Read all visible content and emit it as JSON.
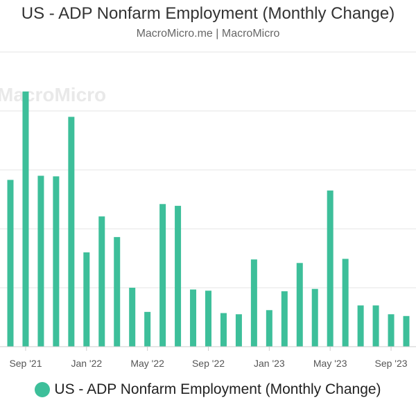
{
  "title": "US - ADP Nonfarm Employment (Monthly Change)",
  "subtitle": "MacroMicro.me | MacroMicro",
  "watermark": "MacroMicro",
  "colors": {
    "bar": "#3dbf9a",
    "grid": "#e6e6e6",
    "axis_text": "#555555"
  },
  "legend": {
    "label": "US - ADP Nonfarm Employment (Monthly Change)"
  },
  "chart_data": {
    "type": "bar",
    "title": "US - ADP Nonfarm Employment (Monthly Change)",
    "xlabel": "",
    "ylabel": "",
    "grid": true,
    "legend_position": "bottom",
    "x_tick_labels": [
      "Sep '21",
      "Jan '22",
      "May '22",
      "Sep '22",
      "Jan '23",
      "May '23",
      "Sep '23"
    ],
    "ylim": [
      0,
      500000
    ],
    "series": [
      {
        "name": "US - ADP Nonfarm Employment (Monthly Change)",
        "categories": [
          "2021-08",
          "2021-09",
          "2021-10",
          "2021-11",
          "2021-12",
          "2022-01",
          "2022-02",
          "2022-03",
          "2022-04",
          "2022-05",
          "2022-06",
          "2022-07",
          "2022-08",
          "2022-09",
          "2022-10",
          "2022-11",
          "2022-12",
          "2023-01",
          "2023-02",
          "2023-03",
          "2023-04",
          "2023-05",
          "2023-06",
          "2023-07",
          "2023-08",
          "2023-09",
          "2023-10"
        ],
        "values": [
          283000,
          433000,
          290000,
          289000,
          390000,
          160000,
          221000,
          186000,
          100000,
          59000,
          242000,
          239000,
          97000,
          95000,
          57000,
          55000,
          148000,
          62000,
          94000,
          142000,
          98000,
          265000,
          149000,
          70000,
          70000,
          55000,
          52000
        ]
      }
    ]
  }
}
